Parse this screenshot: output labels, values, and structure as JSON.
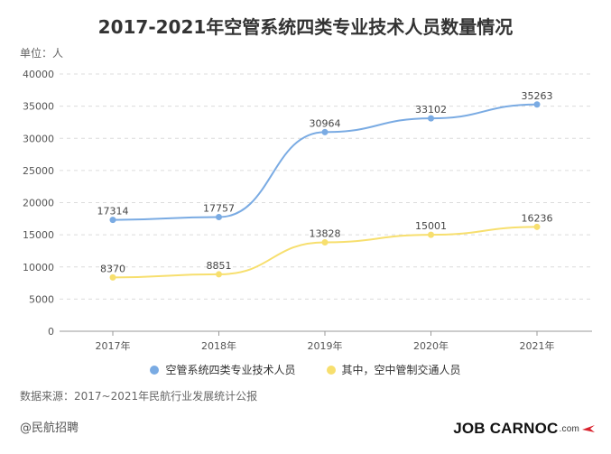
{
  "chart_data": {
    "type": "line",
    "title": "2017-2021年空管系统四类专业技术人员数量情况",
    "unit_label": "单位：人",
    "categories": [
      "2017年",
      "2018年",
      "2019年",
      "2020年",
      "2021年"
    ],
    "ylim": [
      0,
      40000
    ],
    "yticks": [
      0,
      5000,
      10000,
      15000,
      20000,
      25000,
      30000,
      35000,
      40000
    ],
    "grid": true,
    "legend_position": "bottom",
    "series": [
      {
        "name": "空管系统四类专业技术人员",
        "color": "#7aabe3",
        "values": [
          17314,
          17757,
          30964,
          33102,
          35263
        ]
      },
      {
        "name": "其中，空中管制交通人员",
        "color": "#f7df6e",
        "values": [
          8370,
          8851,
          13828,
          15001,
          16236
        ]
      }
    ]
  },
  "footer": {
    "source": "数据来源：2017~2021年民航行业发展统计公报",
    "handle": "@民航招聘",
    "logo_main": "JOB CARNOC",
    "logo_suffix": ".com",
    "logo_mark_color": "#d9232e"
  }
}
